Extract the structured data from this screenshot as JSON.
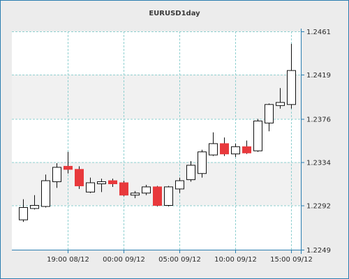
{
  "chart_data": {
    "type": "candlestick",
    "title": "EURUSD1day",
    "y_ticks": [
      "1.2461",
      "1.2419",
      "1.2376",
      "1.2334",
      "1.2292",
      "1.2249"
    ],
    "ylim": [
      1.2249,
      1.2461
    ],
    "x_ticks": [
      {
        "label": "19:00 08/12",
        "index": 4
      },
      {
        "label": "00:00 09/12",
        "index": 9
      },
      {
        "label": "05:00 09/12",
        "index": 14
      },
      {
        "label": "10:00 09/12",
        "index": 19
      },
      {
        "label": "15:00 09/12",
        "index": 24
      }
    ],
    "grid": true,
    "colors": {
      "up_fill": "#ffffff",
      "down_fill": "#e8393c",
      "candle_edge": "#111111",
      "grid": "#8fd0d0",
      "band_white": "#ffffff",
      "band_gray": "#f1f1f1",
      "axis": "#2a7db0"
    },
    "candles": [
      {
        "o": 1.2278,
        "h": 1.2298,
        "l": 1.2276,
        "c": 1.229
      },
      {
        "o": 1.2289,
        "h": 1.2302,
        "l": 1.2288,
        "c": 1.2292
      },
      {
        "o": 1.2291,
        "h": 1.2322,
        "l": 1.229,
        "c": 1.2316
      },
      {
        "o": 1.2315,
        "h": 1.2333,
        "l": 1.2309,
        "c": 1.2329
      },
      {
        "o": 1.233,
        "h": 1.2344,
        "l": 1.2323,
        "c": 1.2327
      },
      {
        "o": 1.2327,
        "h": 1.233,
        "l": 1.2308,
        "c": 1.2311
      },
      {
        "o": 1.2305,
        "h": 1.2319,
        "l": 1.2304,
        "c": 1.2314
      },
      {
        "o": 1.2313,
        "h": 1.2318,
        "l": 1.2305,
        "c": 1.2315
      },
      {
        "o": 1.2316,
        "h": 1.2318,
        "l": 1.231,
        "c": 1.2313
      },
      {
        "o": 1.2314,
        "h": 1.2316,
        "l": 1.2301,
        "c": 1.2302
      },
      {
        "o": 1.2302,
        "h": 1.2306,
        "l": 1.2299,
        "c": 1.2304
      },
      {
        "o": 1.2304,
        "h": 1.2312,
        "l": 1.2302,
        "c": 1.231
      },
      {
        "o": 1.231,
        "h": 1.2311,
        "l": 1.2291,
        "c": 1.2292
      },
      {
        "o": 1.2292,
        "h": 1.2311,
        "l": 1.2291,
        "c": 1.231
      },
      {
        "o": 1.2308,
        "h": 1.2319,
        "l": 1.2304,
        "c": 1.2316
      },
      {
        "o": 1.2317,
        "h": 1.2335,
        "l": 1.2315,
        "c": 1.2331
      },
      {
        "o": 1.2323,
        "h": 1.2346,
        "l": 1.2319,
        "c": 1.2344
      },
      {
        "o": 1.2341,
        "h": 1.2363,
        "l": 1.234,
        "c": 1.2352
      },
      {
        "o": 1.2352,
        "h": 1.2358,
        "l": 1.234,
        "c": 1.2342
      },
      {
        "o": 1.2342,
        "h": 1.2352,
        "l": 1.2339,
        "c": 1.2349
      },
      {
        "o": 1.2349,
        "h": 1.2355,
        "l": 1.2342,
        "c": 1.2343
      },
      {
        "o": 1.2345,
        "h": 1.2376,
        "l": 1.2344,
        "c": 1.2374
      },
      {
        "o": 1.2372,
        "h": 1.2391,
        "l": 1.2364,
        "c": 1.239
      },
      {
        "o": 1.2389,
        "h": 1.2406,
        "l": 1.2386,
        "c": 1.2392
      },
      {
        "o": 1.239,
        "h": 1.2449,
        "l": 1.2386,
        "c": 1.2423
      }
    ]
  }
}
